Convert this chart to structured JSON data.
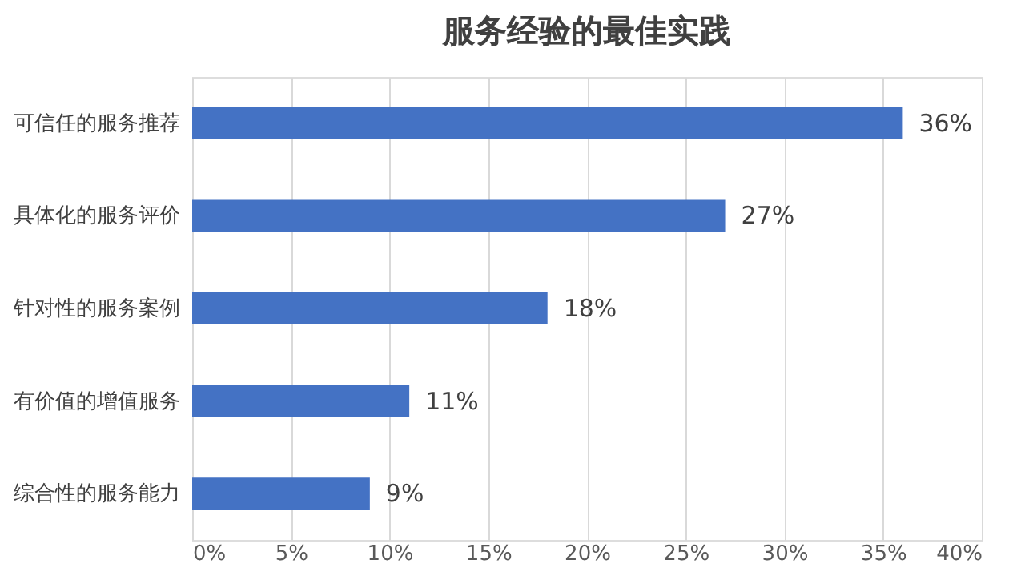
{
  "chart_data": {
    "type": "bar",
    "orientation": "horizontal",
    "title": "服务经验的最佳实践",
    "categories": [
      "可信任的服务推荐",
      "具体化的服务评价",
      "针对性的服务案例",
      "有价值的增值服务",
      "综合性的服务能力"
    ],
    "values": [
      36,
      27,
      18,
      11,
      9
    ],
    "value_labels": [
      "36%",
      "27%",
      "18%",
      "11%",
      "9%"
    ],
    "color": "#4472c4",
    "xlim": [
      0,
      40
    ],
    "xticks": [
      {
        "value": 0,
        "label": "0%"
      },
      {
        "value": 5,
        "label": "5%"
      },
      {
        "value": 10,
        "label": "10%"
      },
      {
        "value": 15,
        "label": "15%"
      },
      {
        "value": 20,
        "label": "20%"
      },
      {
        "value": 25,
        "label": "25%"
      },
      {
        "value": 30,
        "label": "30%"
      },
      {
        "value": 35,
        "label": "35%"
      },
      {
        "value": 40,
        "label": "40%"
      }
    ],
    "grid": "x"
  }
}
